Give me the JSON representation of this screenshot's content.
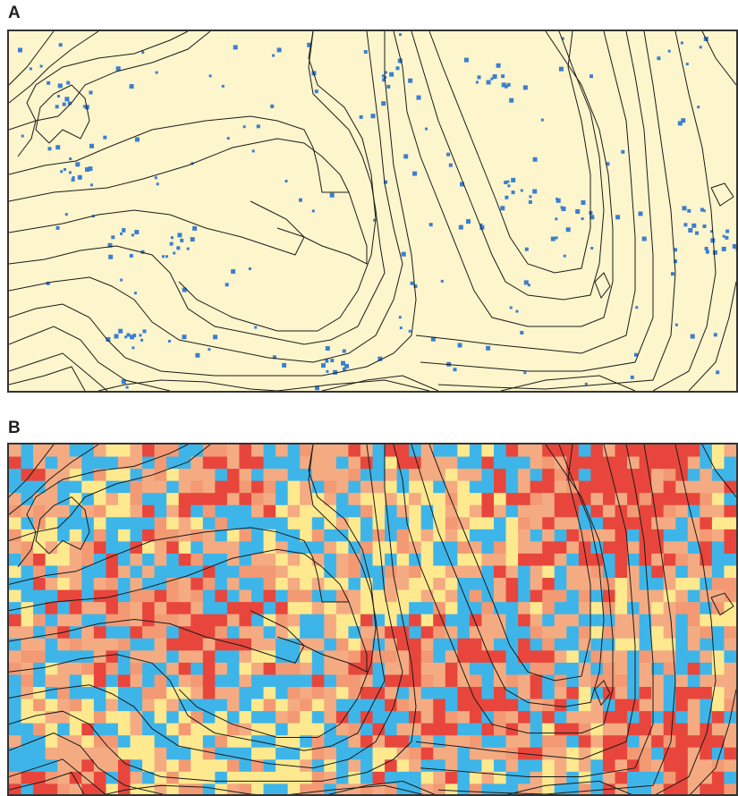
{
  "panels": [
    {
      "label": "A",
      "background": "#fdf5cc",
      "point_color": "#3a7fd0",
      "contour_color": "#1b1b1b"
    },
    {
      "label": "B",
      "contour_color": "#1b1b1b",
      "class_colors": [
        "#f5ab82",
        "#f39a74",
        "#3eb5e8",
        "#ffe98f",
        "#e8463c"
      ]
    }
  ]
}
